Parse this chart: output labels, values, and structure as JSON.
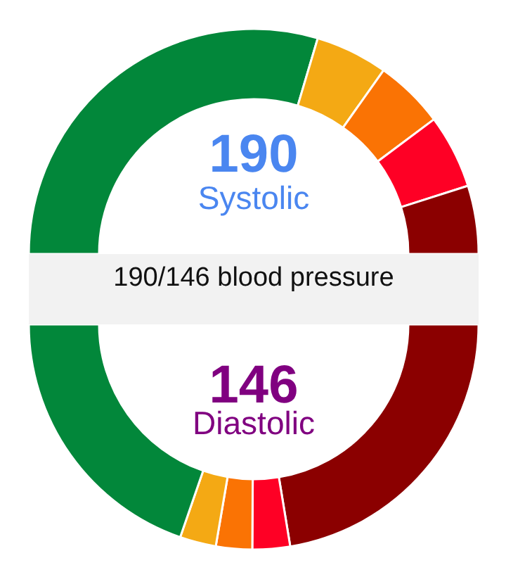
{
  "chart_data": {
    "type": "donut",
    "title": "190/146 blood pressure",
    "categories": [
      null,
      null,
      null,
      null,
      null,
      null,
      null,
      null,
      null,
      null
    ],
    "values": [
      29.6,
      5.2,
      5.0,
      5.3,
      4.9,
      22.4,
      2.7,
      2.6,
      2.6,
      19.7
    ],
    "colors": [
      "#02873a",
      "#f4a914",
      "#fa7304",
      "#fe0025",
      "#8b0000",
      "#8b0000",
      "#fe0025",
      "#fa7304",
      "#f4a914",
      "#02873a"
    ],
    "annotations": [
      "190",
      "Systolic",
      "146",
      "Diastolic"
    ]
  }
}
